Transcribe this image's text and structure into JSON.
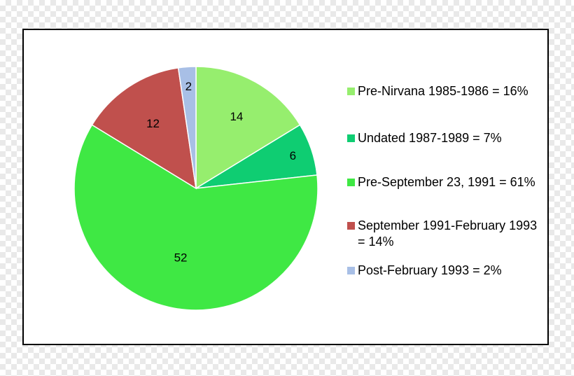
{
  "chart_data": {
    "type": "pie",
    "title": "",
    "slices": [
      {
        "label": "Pre-Nirvana 1985-1986 = 16%",
        "value": 14,
        "value_label": "14",
        "color": "#96ee6e"
      },
      {
        "label": "Undated 1987-1989 = 7%",
        "value": 6,
        "value_label": "6",
        "color": "#0fcd72"
      },
      {
        "label": "Pre-September 23, 1991 = 61%",
        "value": 52,
        "value_label": "52",
        "color": "#3fe844"
      },
      {
        "label": "September 1991-February 1993 = 14%",
        "value": 12,
        "value_label": "12",
        "color": "#c0504d"
      },
      {
        "label": "Post-February 1993 = 2%",
        "value": 2,
        "value_label": "2",
        "color": "#a8bfe6"
      }
    ],
    "start_angle": "12 o'clock",
    "direction": "clockwise",
    "legend_position": "right"
  }
}
